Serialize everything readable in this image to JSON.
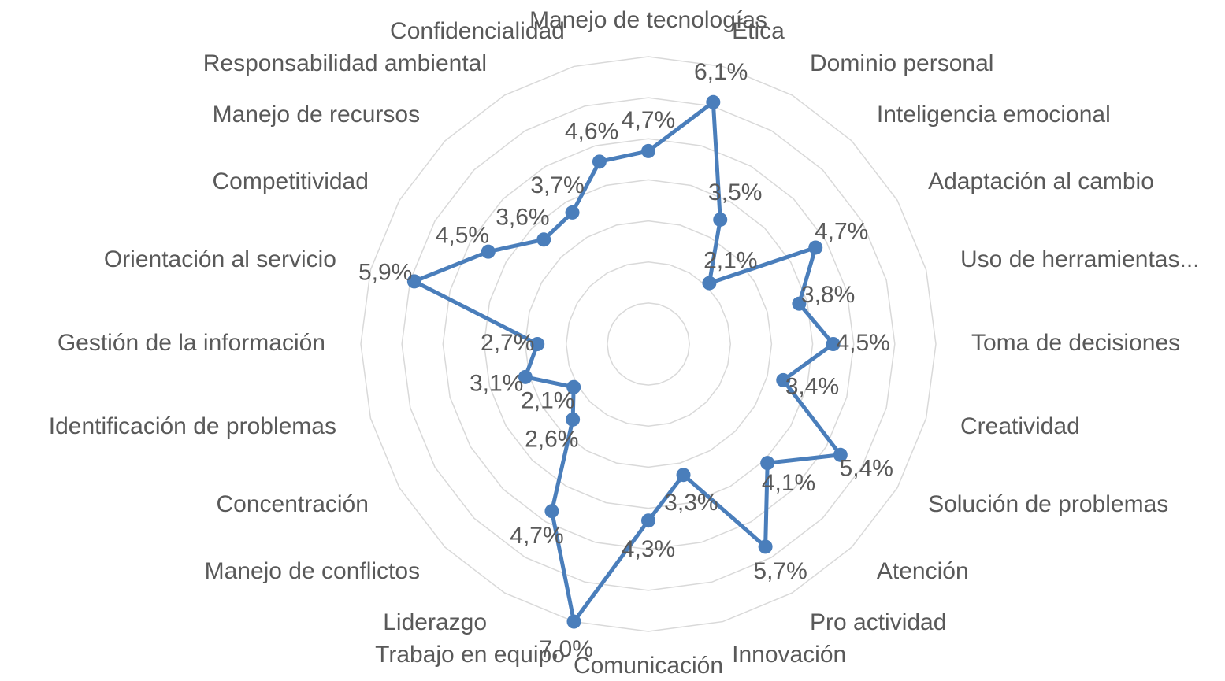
{
  "chart_data": {
    "type": "radar",
    "categories": [
      "Manejo de tecnologías",
      "Ética",
      "Dominio personal",
      "Inteligencia emocional",
      "Adaptación al cambio",
      "Uso de herramientas...",
      "Toma de decisiones",
      "Creatividad",
      "Solución de problemas",
      "Atención",
      "Pro actividad",
      "Innovación",
      "Comunicación",
      "Trabajo en equipo",
      "Liderazgo",
      "Manejo de conflictos",
      "Concentración",
      "Identificación de problemas",
      "Gestión de la información",
      "Orientación al servicio",
      "Competitividad",
      "Manejo de recursos",
      "Responsabilidad ambiental",
      "Confidencialidad"
    ],
    "values": [
      4.7,
      6.1,
      3.5,
      2.1,
      4.7,
      3.8,
      4.5,
      3.4,
      5.4,
      4.1,
      5.7,
      3.3,
      4.3,
      7.0,
      4.7,
      2.6,
      2.1,
      3.1,
      2.7,
      5.9,
      4.5,
      3.6,
      3.7,
      4.6
    ],
    "value_labels": [
      "4,7%",
      "6,1%",
      "3,5%",
      "2,1%",
      "4,7%",
      "3,8%",
      "4,5%",
      "3,4%",
      "5,4%",
      "4,1%",
      "5,7%",
      "3,3%",
      "4,3%",
      "7,0%",
      "4,7%",
      "2,6%",
      "2,1%",
      "3,1%",
      "2,7%",
      "5,9%",
      "4,5%",
      "3,6%",
      "3,7%",
      "4,6%"
    ],
    "color": "#4a7ebb",
    "ylim": [
      0,
      7
    ],
    "yticks": [
      0,
      1,
      2,
      3,
      4,
      5,
      6,
      7
    ],
    "grid": true
  }
}
